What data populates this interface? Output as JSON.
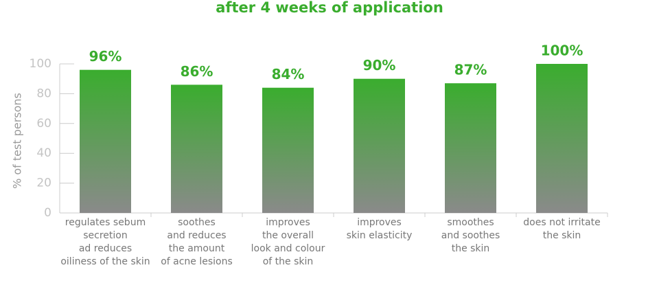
{
  "chart_data": {
    "type": "bar",
    "title": "after 4 weeks of application",
    "y_label": "% of test persons",
    "categories": [
      "regulates sebum\nsecretion\nad reduces\noiliness of the skin",
      "soothes\nand reduces\nthe amount\nof acne lesions",
      "improves\nthe overall\nlook and colour\nof the skin",
      "improves\nskin elasticity",
      "smoothes\nand soothes\nthe skin",
      "does not irritate\nthe skin"
    ],
    "values": [
      96,
      86,
      84,
      90,
      87,
      100
    ],
    "value_labels": [
      "96%",
      "86%",
      "84%",
      "90%",
      "87%",
      "100%"
    ],
    "color": "#3aad2e",
    "gradient_end": "#8a8a8a",
    "ylim": [
      0,
      100
    ],
    "yticks": [
      0,
      20,
      40,
      60,
      80,
      100
    ]
  }
}
